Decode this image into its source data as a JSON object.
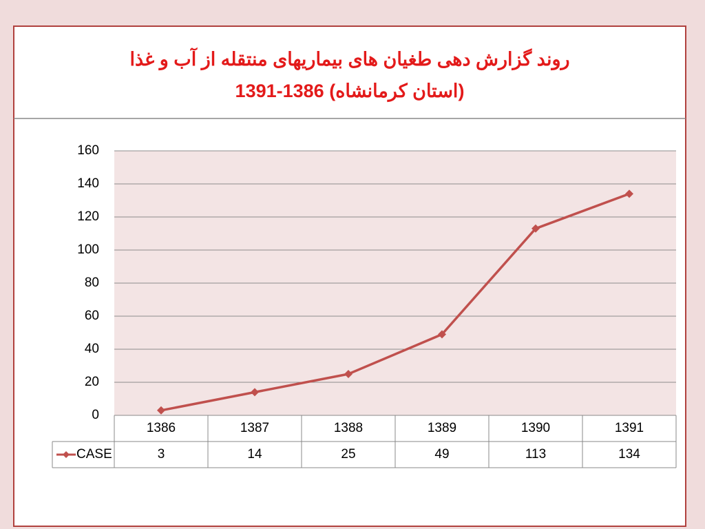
{
  "chart_data": {
    "type": "line",
    "title": "روند گزارش دهی طغیان های بیماریهای منتقله از آب و غذا",
    "subtitle": "(استان کرمانشاه) 1386-1391",
    "categories": [
      "1386",
      "1387",
      "1388",
      "1389",
      "1390",
      "1391"
    ],
    "series": [
      {
        "name": "CASE",
        "color": "#c0504d",
        "values": [
          3,
          14,
          25,
          49,
          113,
          134
        ]
      }
    ],
    "ylim": [
      0,
      160
    ],
    "yticks": [
      0,
      20,
      40,
      60,
      80,
      100,
      120,
      140,
      160
    ],
    "grid": true,
    "data_table": true
  }
}
